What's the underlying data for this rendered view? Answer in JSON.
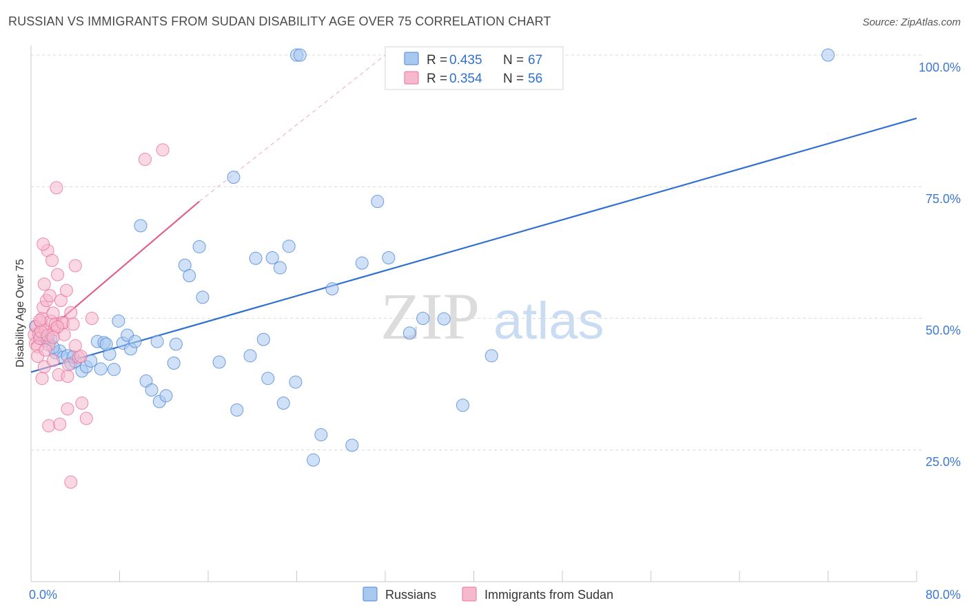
{
  "title": "RUSSIAN VS IMMIGRANTS FROM SUDAN DISABILITY AGE OVER 75 CORRELATION CHART",
  "source": "Source: ZipAtlas.com",
  "watermark": {
    "zip": "ZIP",
    "atlas": "atlas"
  },
  "colors": {
    "blue": "#4a86d8",
    "blue_fill": "#a9c8f0",
    "blue_line": "#2f6fcf",
    "pink": "#e86f98",
    "pink_fill": "#f6b8cc",
    "pink_line": "#e0608c",
    "grid": "#d9d9d9",
    "tick_text": "#3a78d4"
  },
  "legend": {
    "rows": [
      {
        "r_label": "R = ",
        "r_value": "0.435",
        "n_label": "N = ",
        "n_value": "67"
      },
      {
        "r_label": "R = ",
        "r_value": "0.354",
        "n_label": "N = ",
        "n_value": "56"
      }
    ]
  },
  "chart_data": {
    "type": "scatter",
    "title": "RUSSIAN VS IMMIGRANTS FROM SUDAN DISABILITY AGE OVER 75 CORRELATION CHART",
    "xlabel": "",
    "ylabel": "Disability Age Over 75",
    "xlim": [
      0,
      80
    ],
    "ylim": [
      0,
      100
    ],
    "x_tick_labels": [
      "0.0%",
      "80.0%"
    ],
    "y_ticks": [
      25,
      50,
      75,
      100
    ],
    "y_tick_labels": [
      "25.0%",
      "50.0%",
      "75.0%",
      "100.0%"
    ],
    "grid": true,
    "legend_position": "top-center",
    "series": [
      {
        "name": "Russians",
        "color": "#4a86d8",
        "trend": {
          "x": [
            0,
            80
          ],
          "y": [
            39.8,
            88.0
          ],
          "style": "solid"
        },
        "points": [
          [
            0.4,
            48.5
          ],
          [
            0.8,
            46.5
          ],
          [
            1.2,
            45.8
          ],
          [
            1.5,
            46.2
          ],
          [
            1.8,
            46.0
          ],
          [
            2.2,
            43.5
          ],
          [
            2.6,
            43.8
          ],
          [
            2.9,
            42.6
          ],
          [
            3.3,
            42.9
          ],
          [
            3.6,
            41.4
          ],
          [
            4.0,
            41.8
          ],
          [
            4.6,
            40.0
          ],
          [
            5.0,
            40.8
          ],
          [
            5.4,
            41.9
          ],
          [
            6.0,
            45.6
          ],
          [
            6.3,
            40.4
          ],
          [
            6.6,
            45.4
          ],
          [
            7.1,
            43.2
          ],
          [
            7.5,
            40.3
          ],
          [
            7.9,
            49.5
          ],
          [
            8.3,
            45.3
          ],
          [
            8.7,
            46.8
          ],
          [
            9.0,
            44.2
          ],
          [
            9.4,
            45.6
          ],
          [
            9.9,
            67.6
          ],
          [
            10.4,
            38.1
          ],
          [
            10.9,
            36.4
          ],
          [
            11.6,
            34.2
          ],
          [
            11.4,
            45.6
          ],
          [
            12.2,
            35.3
          ],
          [
            12.9,
            41.5
          ],
          [
            13.1,
            45.1
          ],
          [
            13.9,
            60.1
          ],
          [
            14.3,
            58.1
          ],
          [
            15.2,
            63.6
          ],
          [
            15.5,
            54.0
          ],
          [
            17.0,
            41.7
          ],
          [
            18.3,
            76.8
          ],
          [
            18.6,
            32.6
          ],
          [
            19.8,
            42.9
          ],
          [
            20.3,
            61.4
          ],
          [
            21.0,
            46.0
          ],
          [
            21.4,
            38.6
          ],
          [
            21.8,
            61.5
          ],
          [
            22.5,
            59.6
          ],
          [
            22.8,
            33.9
          ],
          [
            23.3,
            63.7
          ],
          [
            23.9,
            37.9
          ],
          [
            24.0,
            100.0
          ],
          [
            24.3,
            100.0
          ],
          [
            25.5,
            23.1
          ],
          [
            26.2,
            27.9
          ],
          [
            27.2,
            55.6
          ],
          [
            29.0,
            25.9
          ],
          [
            29.9,
            60.5
          ],
          [
            31.3,
            72.2
          ],
          [
            32.3,
            61.5
          ],
          [
            34.2,
            47.2
          ],
          [
            35.4,
            50.0
          ],
          [
            37.3,
            49.9
          ],
          [
            39.0,
            33.5
          ],
          [
            41.6,
            42.9
          ],
          [
            72.0,
            100.0
          ],
          [
            34.5,
            100.0
          ],
          [
            2.0,
            44.5
          ],
          [
            6.8,
            45.1
          ],
          [
            3.8,
            42.7
          ]
        ]
      },
      {
        "name": "Immigrants from Sudan",
        "color": "#e86f98",
        "trend": {
          "x": [
            0,
            15.2
          ],
          "y": [
            45.0,
            72.2
          ],
          "style": "solid",
          "extended_to": [
            32,
            100
          ],
          "extended_style": "dashed"
        },
        "points": [
          [
            0.3,
            46.9
          ],
          [
            0.4,
            45.2
          ],
          [
            0.5,
            48.5
          ],
          [
            0.6,
            44.6
          ],
          [
            0.7,
            47.0
          ],
          [
            0.8,
            46.2
          ],
          [
            0.9,
            49.2
          ],
          [
            1.0,
            50.0
          ],
          [
            1.0,
            38.6
          ],
          [
            1.1,
            52.1
          ],
          [
            1.2,
            56.5
          ],
          [
            1.2,
            40.8
          ],
          [
            1.3,
            47.8
          ],
          [
            1.4,
            53.4
          ],
          [
            1.5,
            62.9
          ],
          [
            1.6,
            45.0
          ],
          [
            1.6,
            29.6
          ],
          [
            1.7,
            54.3
          ],
          [
            1.8,
            49.5
          ],
          [
            1.9,
            61.0
          ],
          [
            2.0,
            42.0
          ],
          [
            2.0,
            51.0
          ],
          [
            2.1,
            47.9
          ],
          [
            2.2,
            48.9
          ],
          [
            2.3,
            74.8
          ],
          [
            2.4,
            58.3
          ],
          [
            2.5,
            39.3
          ],
          [
            2.6,
            29.9
          ],
          [
            2.7,
            53.4
          ],
          [
            2.8,
            49.2
          ],
          [
            2.9,
            49.1
          ],
          [
            3.0,
            46.9
          ],
          [
            3.2,
            55.3
          ],
          [
            3.3,
            39.0
          ],
          [
            3.3,
            32.8
          ],
          [
            3.4,
            41.2
          ],
          [
            3.6,
            51.1
          ],
          [
            3.6,
            18.9
          ],
          [
            3.8,
            48.9
          ],
          [
            4.0,
            60.0
          ],
          [
            4.0,
            44.8
          ],
          [
            4.3,
            42.6
          ],
          [
            4.6,
            33.9
          ],
          [
            5.0,
            31.0
          ],
          [
            5.5,
            50.0
          ],
          [
            10.3,
            80.2
          ],
          [
            11.9,
            82.0
          ],
          [
            1.1,
            64.1
          ],
          [
            0.9,
            47.5
          ],
          [
            2.4,
            48.4
          ],
          [
            1.5,
            46.8
          ],
          [
            0.6,
            42.8
          ],
          [
            1.3,
            44.0
          ],
          [
            2.0,
            46.4
          ],
          [
            0.8,
            49.6
          ],
          [
            4.5,
            42.8
          ]
        ]
      }
    ]
  },
  "bottom_legend": {
    "items": [
      "Russians",
      "Immigrants from Sudan"
    ]
  }
}
